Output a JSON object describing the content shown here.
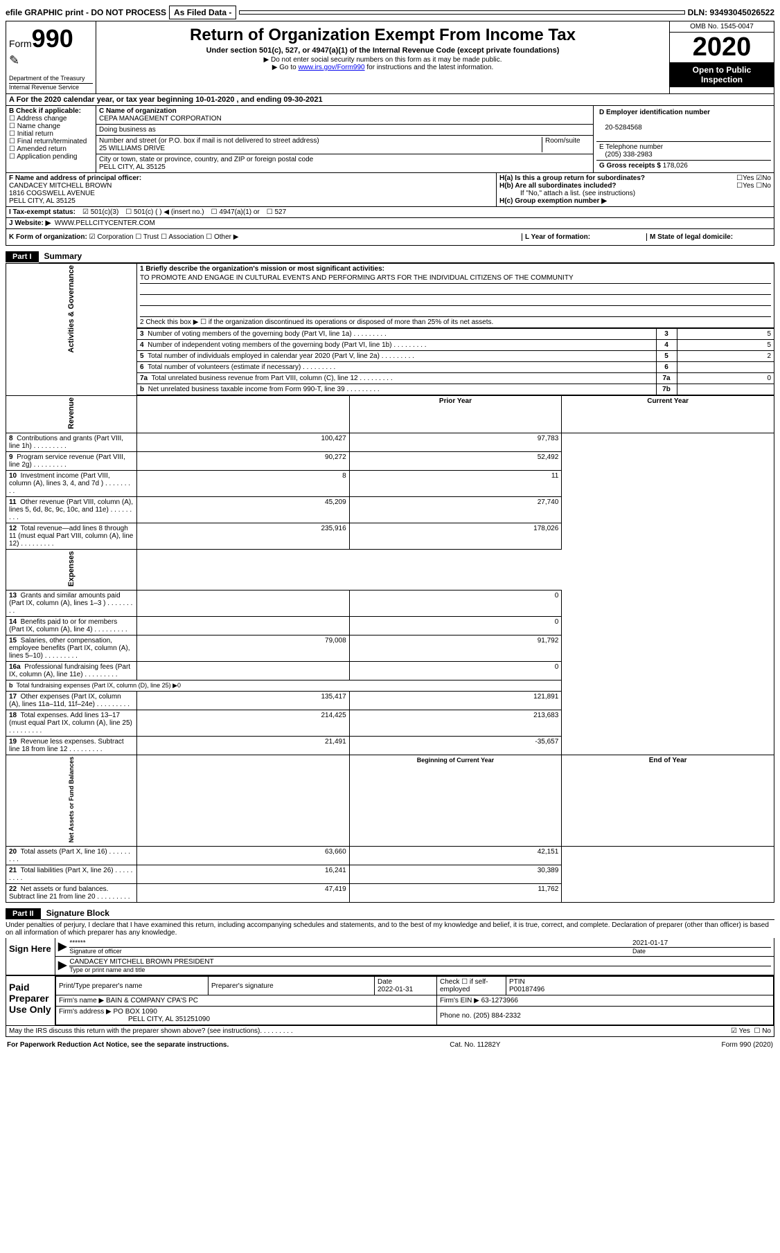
{
  "topbar": {
    "efile": "efile GRAPHIC print - DO NOT PROCESS",
    "asfiled": "As Filed Data -",
    "dln": "DLN: 93493045026522"
  },
  "header": {
    "form_label": "Form",
    "form_num": "990",
    "dept": "Department of the Treasury",
    "irs": "Internal Revenue Service",
    "title": "Return of Organization Exempt From Income Tax",
    "sub1": "Under section 501(c), 527, or 4947(a)(1) of the Internal Revenue Code (except private foundations)",
    "sub2": "▶ Do not enter social security numbers on this form as it may be made public.",
    "sub3_pre": "▶ Go to ",
    "sub3_link": "www.irs.gov/Form990",
    "sub3_post": " for instructions and the latest information.",
    "omb": "OMB No. 1545-0047",
    "year": "2020",
    "inspect": "Open to Public Inspection"
  },
  "line_a": "A   For the 2020 calendar year, or tax year beginning 10-01-2020   , and ending 09-30-2021",
  "box_b": {
    "hdr": "B Check if applicable:",
    "opts": [
      "Address change",
      "Name change",
      "Initial return",
      "Final return/terminated",
      "Amended return",
      "Application pending"
    ]
  },
  "box_c": {
    "name_lbl": "C Name of organization",
    "name": "CEPA MANAGEMENT CORPORATION",
    "dba_lbl": "Doing business as",
    "addr_lbl": "Number and street (or P.O. box if mail is not delivered to street address)",
    "room_lbl": "Room/suite",
    "addr": "25 WILLIAMS DRIVE",
    "city_lbl": "City or town, state or province, country, and ZIP or foreign postal code",
    "city": "PELL CITY, AL  35125"
  },
  "box_d": {
    "lbl": "D Employer identification number",
    "val": "20-5284568"
  },
  "box_e": {
    "lbl": "E Telephone number",
    "val": "(205) 338-2983"
  },
  "box_g": {
    "lbl": "G Gross receipts $ ",
    "val": "178,026"
  },
  "box_f": {
    "lbl": "F   Name and address of principal officer:",
    "name": "CANDACEY MITCHELL BROWN",
    "addr1": "1816 COGSWELL AVENUE",
    "addr2": "PELL CITY, AL  35125"
  },
  "box_h": {
    "a_lbl": "H(a)  Is this a group return for subordinates?",
    "a_yes": "Yes",
    "a_no": "No",
    "b_lbl": "H(b)  Are all subordinates included?",
    "b_yes": "Yes",
    "b_no": "No",
    "b_note": "If \"No,\" attach a list. (see instructions)",
    "c_lbl": "H(c)  Group exemption number ▶"
  },
  "row_i": {
    "lbl": "I   Tax-exempt status:",
    "o1": "501(c)(3)",
    "o2": "501(c) (   ) ◀ (insert no.)",
    "o3": "4947(a)(1) or",
    "o4": "527"
  },
  "row_j": {
    "lbl": "J   Website: ▶",
    "val": "WWW.PELLCITYCENTER.COM"
  },
  "row_k": {
    "lbl": "K Form of organization:",
    "o1": "Corporation",
    "o2": "Trust",
    "o3": "Association",
    "o4": "Other ▶",
    "l_lbl": "L Year of formation:",
    "m_lbl": "M State of legal domicile:"
  },
  "part1": {
    "tab": "Part I",
    "title": "Summary",
    "side1": "Activities & Governance",
    "side2": "Revenue",
    "side3": "Expenses",
    "side4": "Net Assets or Fund Balances",
    "q1": "1  Briefly describe the organization's mission or most significant activities:",
    "mission": "TO PROMOTE AND ENGAGE IN CULTURAL EVENTS AND PERFORMING ARTS FOR THE INDIVIDUAL CITIZENS OF THE COMMUNITY",
    "q2": "2   Check this box ▶ ☐  if the organization discontinued its operations or disposed of more than 25% of its net assets.",
    "gov_rows": [
      {
        "n": "3",
        "t": "Number of voting members of the governing body (Part VI, line 1a)",
        "b": "3",
        "v": "5"
      },
      {
        "n": "4",
        "t": "Number of independent voting members of the governing body (Part VI, line 1b)",
        "b": "4",
        "v": "5"
      },
      {
        "n": "5",
        "t": "Total number of individuals employed in calendar year 2020 (Part V, line 2a)",
        "b": "5",
        "v": "2"
      },
      {
        "n": "6",
        "t": "Total number of volunteers (estimate if necessary)",
        "b": "6",
        "v": ""
      },
      {
        "n": "7a",
        "t": "Total unrelated business revenue from Part VIII, column (C), line 12",
        "b": "7a",
        "v": "0"
      },
      {
        "n": "b",
        "t": "Net unrelated business taxable income from Form 990-T, line 39",
        "b": "7b",
        "v": ""
      }
    ],
    "py_hdr": "Prior Year",
    "cy_hdr": "Current Year",
    "rev_rows": [
      {
        "n": "8",
        "t": "Contributions and grants (Part VIII, line 1h)",
        "p": "100,427",
        "c": "97,783"
      },
      {
        "n": "9",
        "t": "Program service revenue (Part VIII, line 2g)",
        "p": "90,272",
        "c": "52,492"
      },
      {
        "n": "10",
        "t": "Investment income (Part VIII, column (A), lines 3, 4, and 7d )",
        "p": "8",
        "c": "11"
      },
      {
        "n": "11",
        "t": "Other revenue (Part VIII, column (A), lines 5, 6d, 8c, 9c, 10c, and 11e)",
        "p": "45,209",
        "c": "27,740"
      },
      {
        "n": "12",
        "t": "Total revenue—add lines 8 through 11 (must equal Part VIII, column (A), line 12)",
        "p": "235,916",
        "c": "178,026"
      }
    ],
    "exp_rows": [
      {
        "n": "13",
        "t": "Grants and similar amounts paid (Part IX, column (A), lines 1–3 )",
        "p": "",
        "c": "0"
      },
      {
        "n": "14",
        "t": "Benefits paid to or for members (Part IX, column (A), line 4)",
        "p": "",
        "c": "0"
      },
      {
        "n": "15",
        "t": "Salaries, other compensation, employee benefits (Part IX, column (A), lines 5–10)",
        "p": "79,008",
        "c": "91,792"
      },
      {
        "n": "16a",
        "t": "Professional fundraising fees (Part IX, column (A), line 11e)",
        "p": "",
        "c": "0"
      },
      {
        "n": "b",
        "t": "Total fundraising expenses (Part IX, column (D), line 25) ▶0",
        "p": "—",
        "c": "—"
      },
      {
        "n": "17",
        "t": "Other expenses (Part IX, column (A), lines 11a–11d, 11f–24e)",
        "p": "135,417",
        "c": "121,891"
      },
      {
        "n": "18",
        "t": "Total expenses. Add lines 13–17 (must equal Part IX, column (A), line 25)",
        "p": "214,425",
        "c": "213,683"
      },
      {
        "n": "19",
        "t": "Revenue less expenses. Subtract line 18 from line 12",
        "p": "21,491",
        "c": "-35,657"
      }
    ],
    "by_hdr": "Beginning of Current Year",
    "ey_hdr": "End of Year",
    "net_rows": [
      {
        "n": "20",
        "t": "Total assets (Part X, line 16)",
        "p": "63,660",
        "c": "42,151"
      },
      {
        "n": "21",
        "t": "Total liabilities (Part X, line 26)",
        "p": "16,241",
        "c": "30,389"
      },
      {
        "n": "22",
        "t": "Net assets or fund balances. Subtract line 21 from line 20",
        "p": "47,419",
        "c": "11,762"
      }
    ]
  },
  "part2": {
    "tab": "Part II",
    "title": "Signature Block",
    "perjury": "Under penalties of perjury, I declare that I have examined this return, including accompanying schedules and statements, and to the best of my knowledge and belief, it is true, correct, and complete. Declaration of preparer (other than officer) is based on all information of which preparer has any knowledge.",
    "sign_here": "Sign Here",
    "stars": "******",
    "sig_lbl": "Signature of officer",
    "date_lbl": "Date",
    "sig_date": "2021-01-17",
    "officer": "CANDACEY MITCHELL BROWN PRESIDENT",
    "officer_lbl": "Type or print name and title",
    "paid": "Paid Preparer Use Only",
    "prep_name_lbl": "Print/Type preparer's name",
    "prep_sig_lbl": "Preparer's signature",
    "prep_date": "2022-01-31",
    "self_lbl": "Check ☐ if self-employed",
    "ptin_lbl": "PTIN",
    "ptin": "P00187496",
    "firm_name_lbl": "Firm's name      ▶",
    "firm_name": "BAIN & COMPANY CPA'S PC",
    "firm_ein_lbl": "Firm's EIN ▶",
    "firm_ein": "63-1273966",
    "firm_addr_lbl": "Firm's address ▶",
    "firm_addr": "PO BOX 1090",
    "firm_city": "PELL CITY, AL 351251090",
    "phone_lbl": "Phone no.",
    "phone": "(205) 884-2332",
    "discuss": "May the IRS discuss this return with the preparer shown above? (see instructions)",
    "yes": "Yes",
    "no": "No"
  },
  "footer": {
    "left": "For Paperwork Reduction Act Notice, see the separate instructions.",
    "mid": "Cat. No. 11282Y",
    "right": "Form 990 (2020)"
  }
}
